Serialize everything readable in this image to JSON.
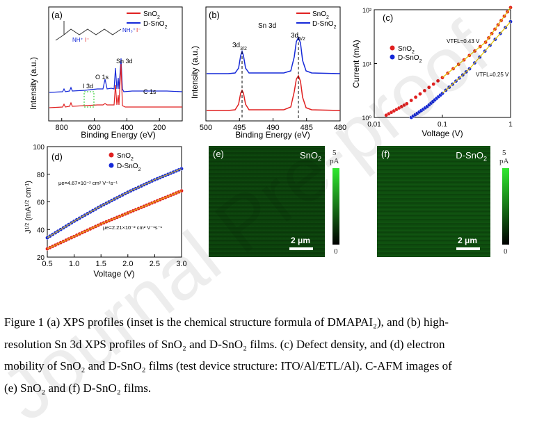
{
  "panel_a": {
    "label": "(a)",
    "ylabel": "Intensity (a.u.)",
    "xlabel": "Binding Energy (eV)",
    "xticks": [
      "800",
      "600",
      "400",
      "200"
    ],
    "legend": [
      "SnO2",
      "D-SnO2"
    ],
    "peaks": {
      "sn3d": "Sn 3d",
      "o1s": "O 1s",
      "i3d": "I 3d",
      "c1s": "C 1s"
    },
    "inset": {
      "n1": "NH⁺",
      "i1": "I⁻",
      "n2": "NH₃⁺",
      "i2": "I⁻"
    }
  },
  "panel_b": {
    "label": "(b)",
    "title": "Sn 3d",
    "ylabel": "Intensity (a.u.)",
    "xlabel": "Binding Energy (eV)",
    "xticks": [
      "500",
      "495",
      "490",
      "485",
      "480"
    ],
    "legend": [
      "SnO2",
      "D-SnO2"
    ],
    "peak_left": "3d3/2",
    "peak_right": "3d5/2"
  },
  "panel_c": {
    "label": "(c)",
    "ylabel": "Current (mA)",
    "xlabel": "Voltage (V)",
    "xticks": [
      "0.01",
      "0.1",
      "1"
    ],
    "yticks": [
      "10⁰",
      "10¹",
      "10²"
    ],
    "legend": [
      "SnO2",
      "D-SnO2"
    ],
    "vtfl_red": "VTFL=0.43 V",
    "vtfl_blue": "VTFL=0.25 V"
  },
  "panel_d": {
    "label": "(d)",
    "ylabel": "J1/2 (mA1/2 cm-1)",
    "xlabel": "Voltage (V)",
    "xticks": [
      "0.5",
      "1.0",
      "1.5",
      "2.0",
      "2.5",
      "3.0"
    ],
    "yticks": [
      "20",
      "40",
      "60",
      "80",
      "100"
    ],
    "legend": [
      "SnO2",
      "D-SnO2"
    ],
    "mu_blue": "μe=4.67×10⁻² cm² V⁻¹s⁻¹",
    "mu_red": "μe=2.21×10⁻² cm² V⁻¹s⁻¹"
  },
  "panel_e": {
    "label": "(e)",
    "name": "SnO2",
    "scalebar": "2 μm",
    "cb_top": "5",
    "cb_unit": "pA",
    "cb_bottom": "0"
  },
  "panel_f": {
    "label": "(f)",
    "name": "D-SnO2",
    "scalebar": "2 μm",
    "cb_top": "5",
    "cb_unit": "pA",
    "cb_bottom": "0"
  },
  "caption": {
    "line1": "Figure 1 (a) XPS profiles (inset is the chemical structure formula of DMAPAI₂), and (b) high-",
    "line2": "resolution Sn 3d XPS profiles of SnO₂ and D-SnO₂ films. (c) Defect density, and (d) electron",
    "line3": "mobility of SnO₂ and D-SnO₂ films (test device structure: ITO/Al/ETL/Al). C-AFM images of",
    "line4": "(e) SnO₂ and (f) D-SnO₂ films."
  },
  "watermark": "Journal Pre-proof",
  "colors": {
    "red": "#e02020",
    "blue": "#1428d8",
    "green": "#1ec81e"
  },
  "chart_data": [
    {
      "type": "line",
      "title": "",
      "xlabel": "Binding Energy (eV)",
      "ylabel": "Intensity (a.u.)",
      "xlim": [
        880,
        60
      ],
      "series": [
        {
          "name": "SnO2",
          "x": [
            850,
            780,
            714,
            700,
            620,
            531,
            487,
            400,
            285,
            100
          ],
          "y": [
            0.1,
            0.12,
            0.16,
            0.12,
            0.14,
            0.45,
            1.0,
            0.15,
            0.16,
            0.15
          ]
        },
        {
          "name": "D-SnO2",
          "x": [
            850,
            780,
            714,
            700,
            620,
            531,
            487,
            400,
            285,
            100
          ],
          "y": [
            0.3,
            0.33,
            0.38,
            0.32,
            0.34,
            0.65,
            1.0,
            0.35,
            0.37,
            0.35
          ]
        }
      ]
    },
    {
      "type": "line",
      "title": "Sn 3d",
      "xlabel": "Binding Energy (eV)",
      "ylabel": "Intensity (a.u.)",
      "xlim": [
        500,
        480
      ],
      "series": [
        {
          "name": "SnO2",
          "x": [
            500,
            495,
            486.6,
            480
          ],
          "y": [
            0.02,
            0.45,
            0.6,
            0.02
          ]
        },
        {
          "name": "D-SnO2",
          "x": [
            500,
            495,
            486.6,
            480
          ],
          "y": [
            0.55,
            0.85,
            0.95,
            0.55
          ]
        }
      ]
    },
    {
      "type": "scatter",
      "title": "",
      "xlabel": "Voltage (V)",
      "ylabel": "Current (mA)",
      "xscale": "log",
      "yscale": "log",
      "xlim": [
        0.01,
        1
      ],
      "ylim": [
        1,
        100
      ],
      "series": [
        {
          "name": "SnO2",
          "x": [
            0.015,
            0.03,
            0.1,
            0.43,
            1.0
          ],
          "y": [
            1.1,
            1.8,
            5.5,
            25,
            110
          ]
        },
        {
          "name": "D-SnO2",
          "x": [
            0.035,
            0.06,
            0.1,
            0.25,
            1.0
          ],
          "y": [
            1.0,
            1.6,
            2.8,
            8,
            60
          ]
        }
      ]
    },
    {
      "type": "scatter",
      "title": "",
      "xlabel": "Voltage (V)",
      "ylabel": "J1/2 (mA1/2 cm-1)",
      "xlim": [
        0.5,
        3.0
      ],
      "ylim": [
        20,
        100
      ],
      "series": [
        {
          "name": "SnO2",
          "x": [
            0.5,
            1.0,
            1.5,
            2.0,
            2.5,
            3.0
          ],
          "y": [
            26,
            35,
            44,
            52,
            60,
            68
          ]
        },
        {
          "name": "D-SnO2",
          "x": [
            0.5,
            1.0,
            1.5,
            2.0,
            2.5,
            3.0
          ],
          "y": [
            34,
            46,
            57,
            67,
            76,
            84
          ]
        }
      ]
    }
  ]
}
